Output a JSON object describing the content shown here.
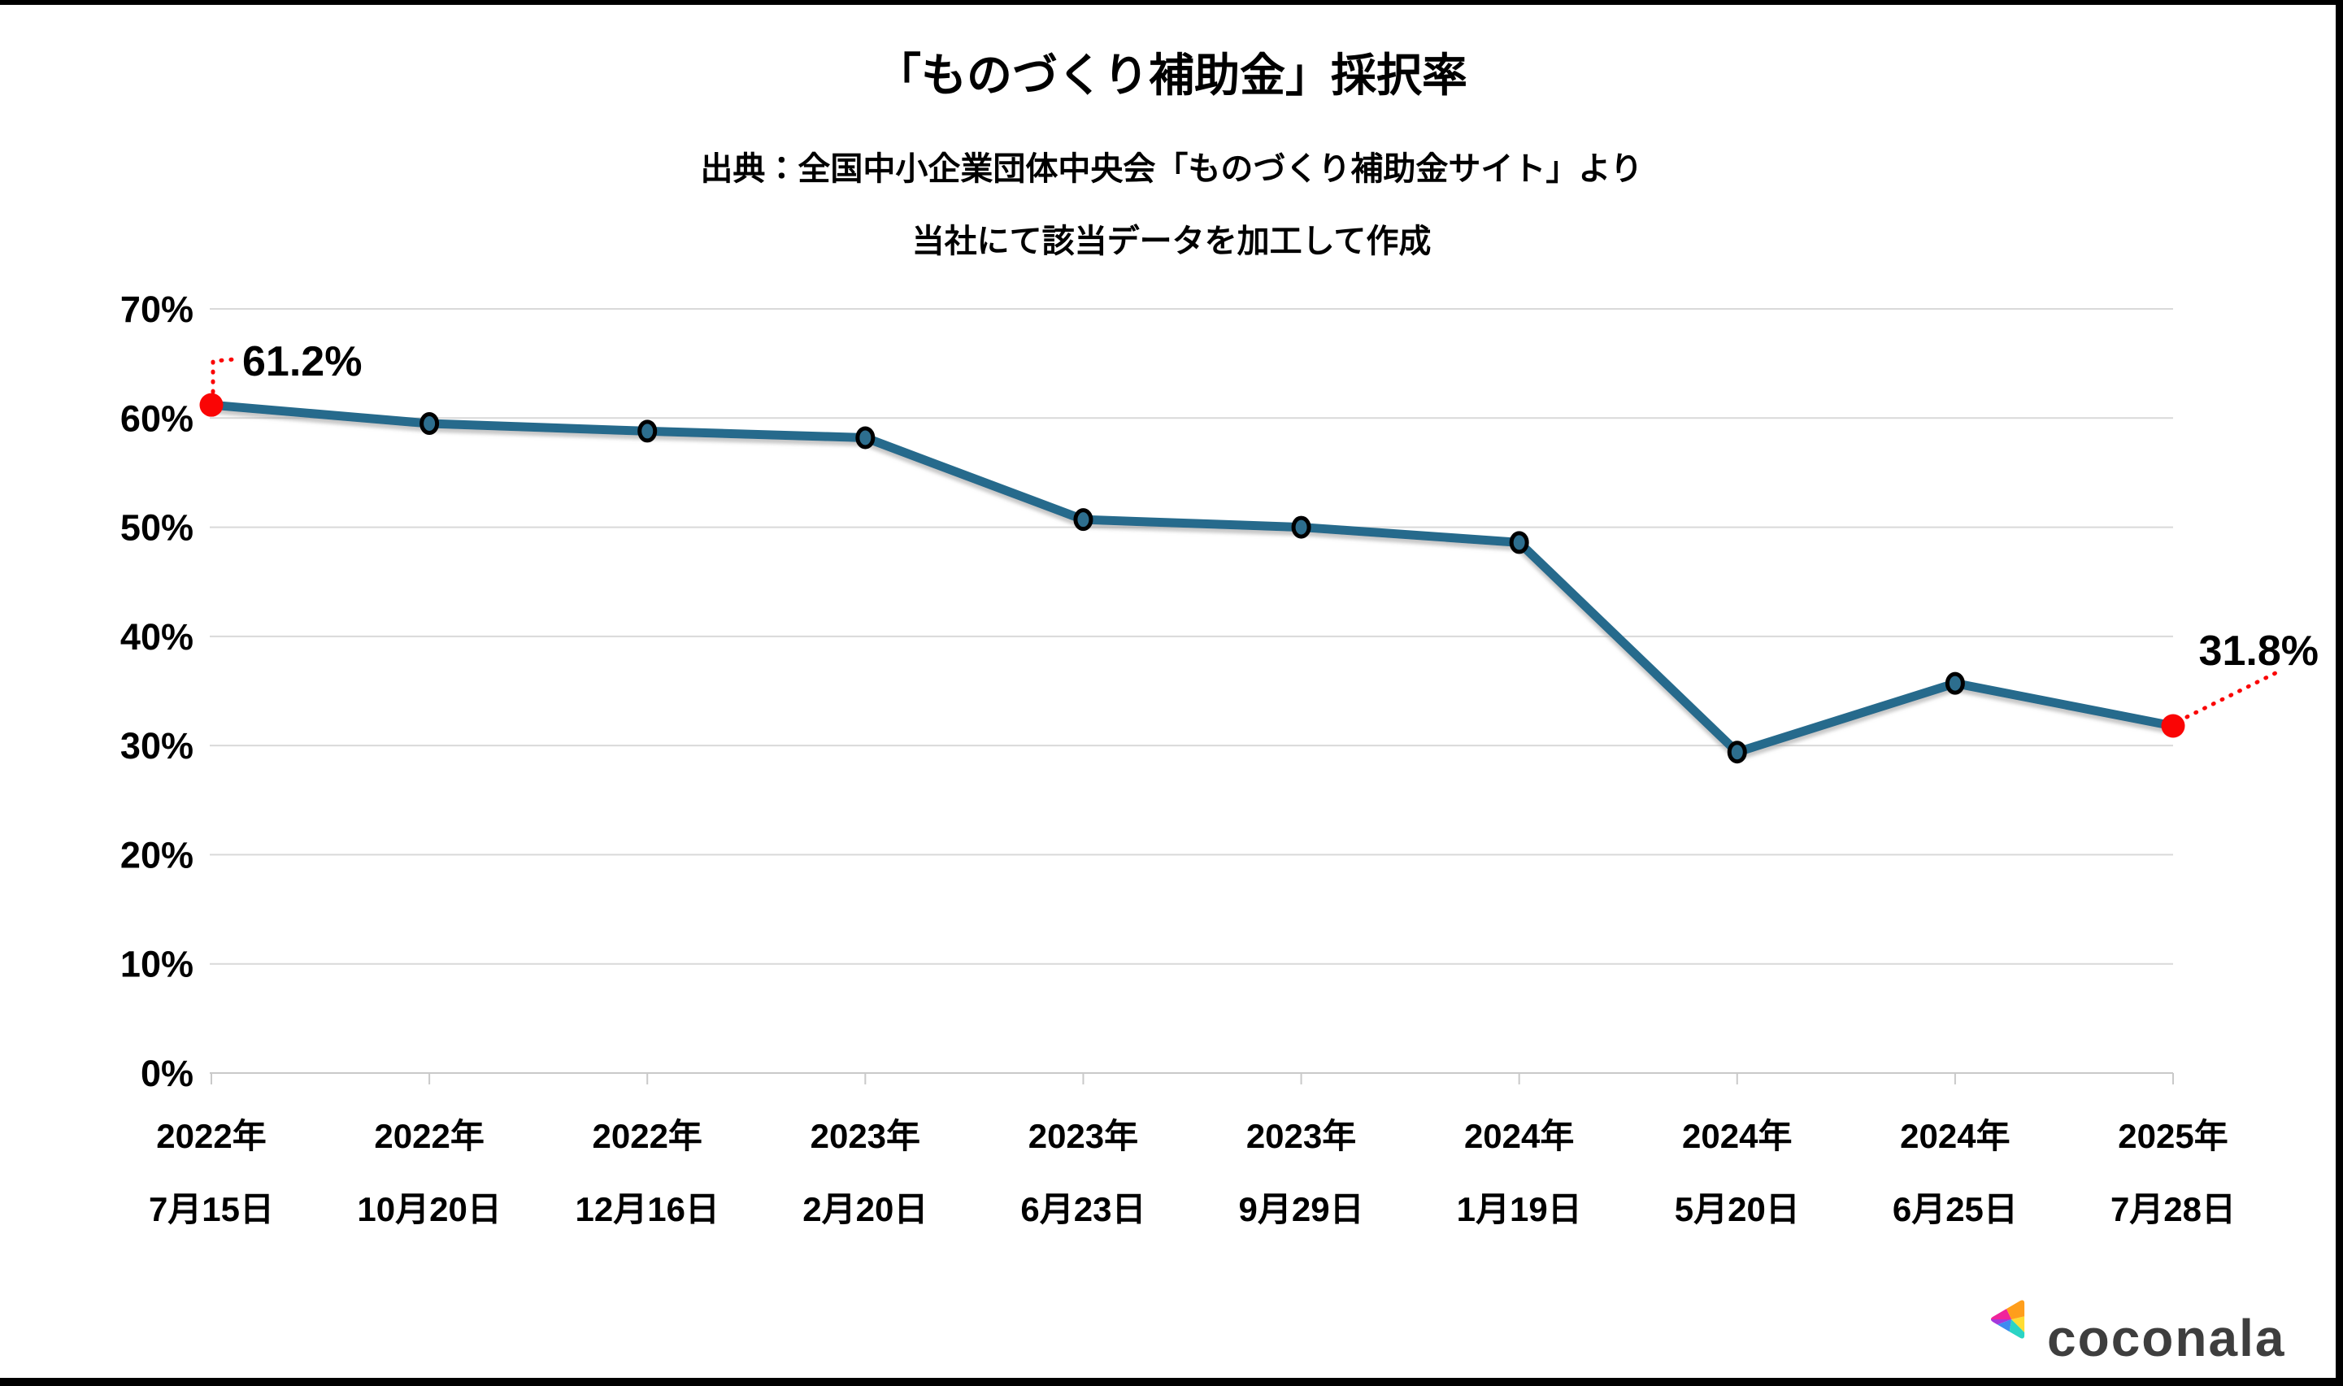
{
  "header": {
    "title": "「ものづくり補助金」採択率",
    "source_line1": "出典：全国中小企業団体中央会「ものづくり補助金サイト」より",
    "source_line2": "当社にて該当データを加工して作成"
  },
  "chart_data": {
    "type": "line",
    "title": "「ものづくり補助金」採択率",
    "categories": [
      {
        "year": "2022年",
        "date": "7月15日"
      },
      {
        "year": "2022年",
        "date": "10月20日"
      },
      {
        "year": "2022年",
        "date": "12月16日"
      },
      {
        "year": "2023年",
        "date": "2月20日"
      },
      {
        "year": "2023年",
        "date": "6月23日"
      },
      {
        "year": "2023年",
        "date": "9月29日"
      },
      {
        "year": "2024年",
        "date": "1月19日"
      },
      {
        "year": "2024年",
        "date": "5月20日"
      },
      {
        "year": "2024年",
        "date": "6月25日"
      },
      {
        "year": "2025年",
        "date": "7月28日"
      }
    ],
    "values": [
      61.2,
      59.5,
      58.8,
      58.2,
      50.7,
      50.0,
      48.6,
      29.4,
      35.7,
      31.8
    ],
    "unit": "%",
    "y_ticks": [
      "70%",
      "60%",
      "50%",
      "40%",
      "30%",
      "20%",
      "10%",
      "0%"
    ],
    "ylim": [
      0,
      70
    ],
    "grid": true,
    "legend": "none",
    "line_color": "#266B8C",
    "marker_fill": "#2D6E8E",
    "marker_outline": "#000000",
    "highlight_color": "#FA0505",
    "callouts": [
      {
        "index": 0,
        "label": "61.2%"
      },
      {
        "index": 9,
        "label": "31.8%"
      }
    ]
  },
  "footer": {
    "logo_text": "coconala"
  }
}
